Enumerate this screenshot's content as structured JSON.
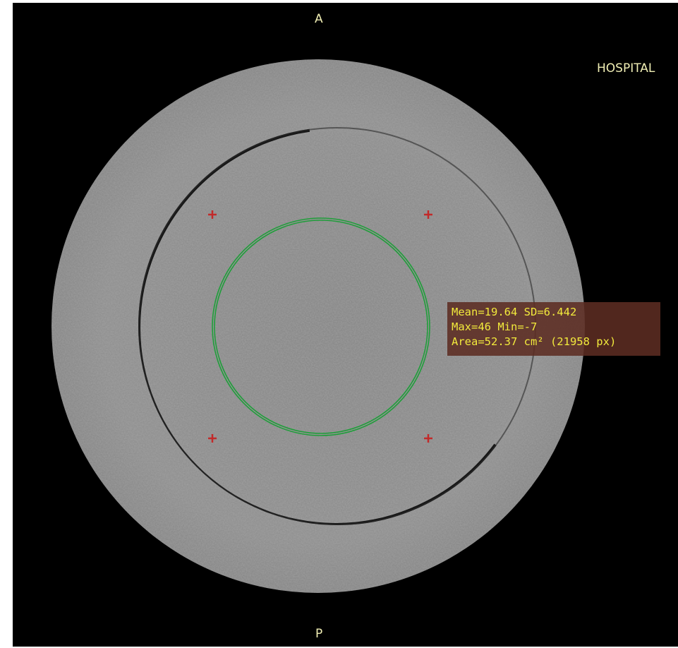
{
  "viewer": {
    "orientation_top": "A",
    "orientation_bottom": "P",
    "institution": "HOSPITAL"
  },
  "roi": {
    "color": "#1f9e3a",
    "stats": {
      "line1": "Mean=19.64 SD=6.442",
      "line2": "Max=46 Min=-7",
      "line3": "Area=52.37 cm² (21958 px)"
    }
  },
  "markers": {
    "color": "#c22a2a",
    "icon": "plus-marker"
  },
  "colors": {
    "background": "#000000",
    "overlay_text": "#f0eeb4",
    "stats_text": "#f2ea3c",
    "stats_background": "#5c2c22"
  }
}
